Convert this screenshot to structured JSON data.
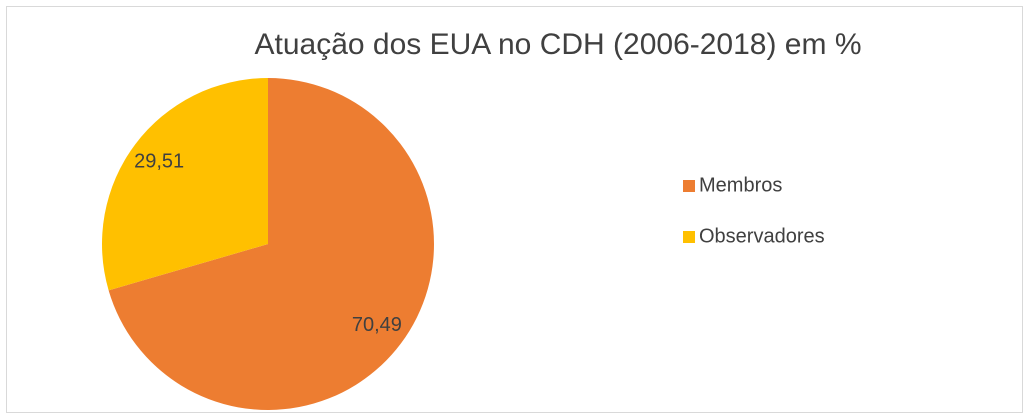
{
  "chart_data": {
    "type": "pie",
    "title": "Atuação dos EUA no CDH (2006-2018) em %",
    "categories": [
      "Membros",
      "Observadores"
    ],
    "values": [
      70.49,
      29.51
    ],
    "value_labels": [
      "70,49",
      "29,51"
    ],
    "colors": [
      "#ED7D31",
      "#FFC000"
    ],
    "legend": "right"
  }
}
